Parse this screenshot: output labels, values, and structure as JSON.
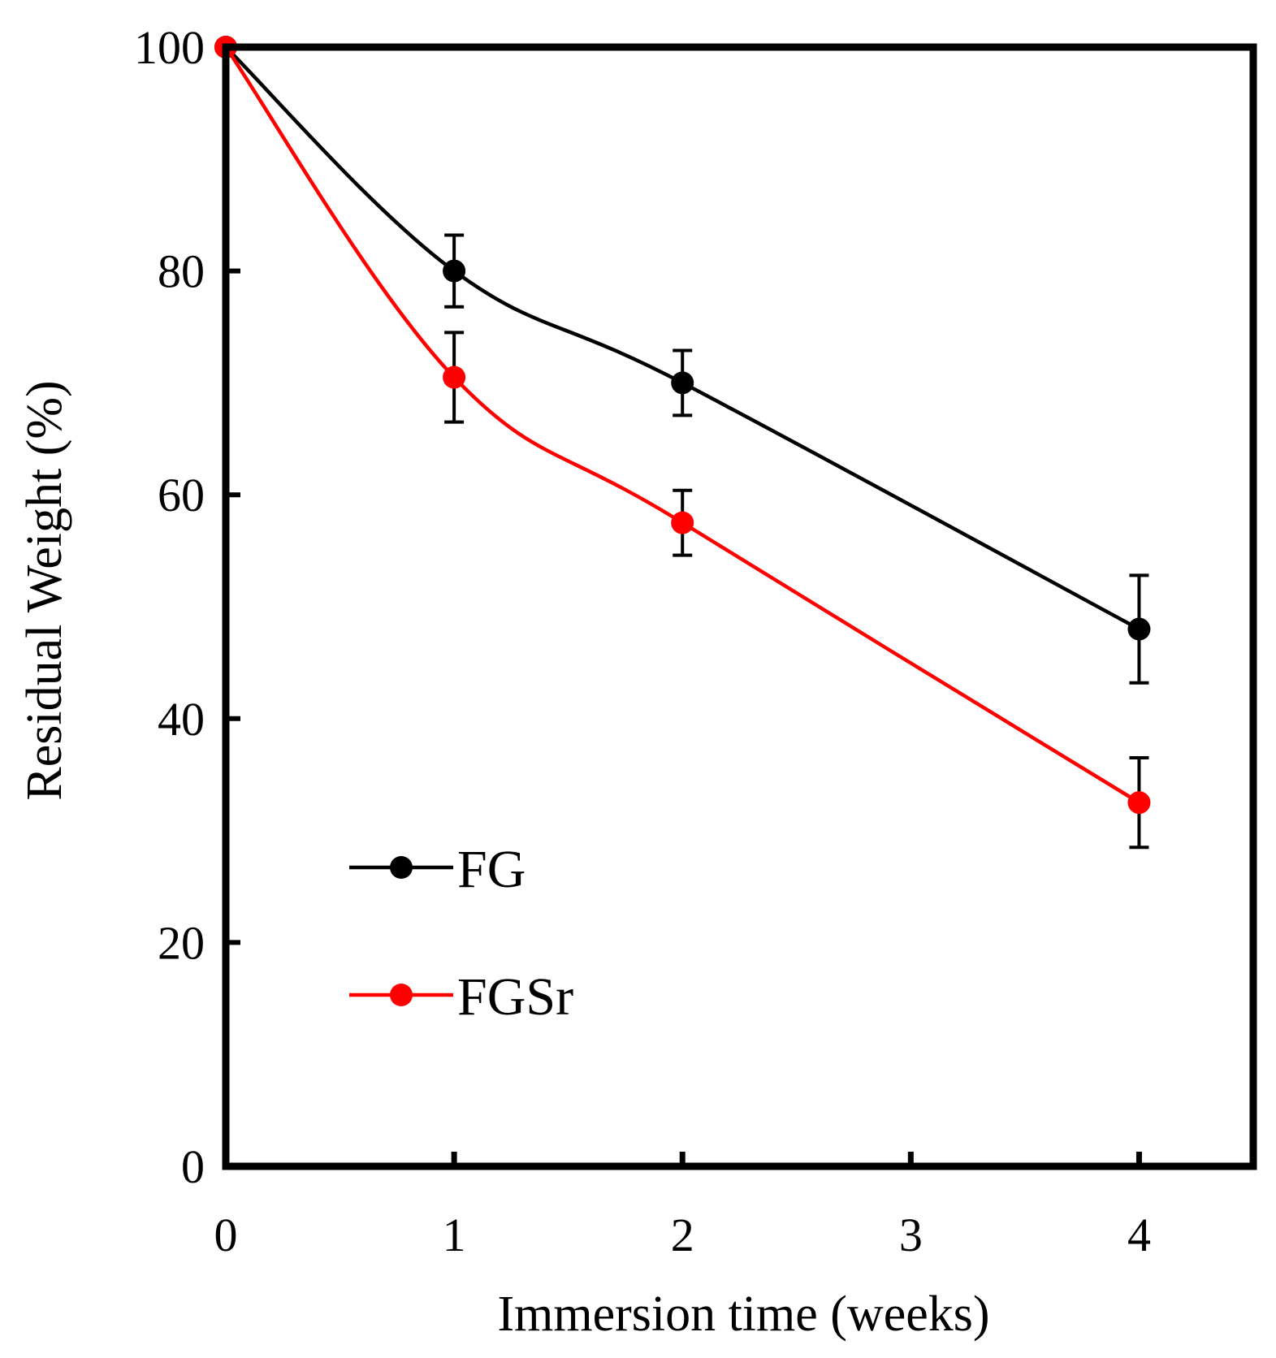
{
  "chart_data": {
    "type": "line",
    "title": "",
    "xlabel": "Immersion time (weeks)",
    "ylabel": "Residual Weight (%)",
    "xlim": [
      0,
      4.5
    ],
    "ylim": [
      0,
      100
    ],
    "xticks": [
      0,
      1,
      2,
      3,
      4
    ],
    "xtick_labels": [
      "0",
      "1",
      "2",
      "3",
      "4"
    ],
    "yticks": [
      0,
      20,
      40,
      60,
      80,
      100
    ],
    "ytick_labels": [
      "0",
      "20",
      "40",
      "60",
      "80",
      "100"
    ],
    "grid": false,
    "legend_position": "bottom-left",
    "series": [
      {
        "name": "FG",
        "color": "#000000",
        "x": [
          0,
          1,
          2,
          4
        ],
        "y": [
          100,
          80,
          70,
          48
        ],
        "error": [
          0,
          3.2,
          2.9,
          4.8
        ]
      },
      {
        "name": "FGSr",
        "color": "#ff0000",
        "x": [
          0,
          1,
          2,
          4
        ],
        "y": [
          100,
          70.5,
          57.5,
          32.5
        ],
        "error": [
          0,
          4,
          2.9,
          4
        ]
      }
    ]
  }
}
